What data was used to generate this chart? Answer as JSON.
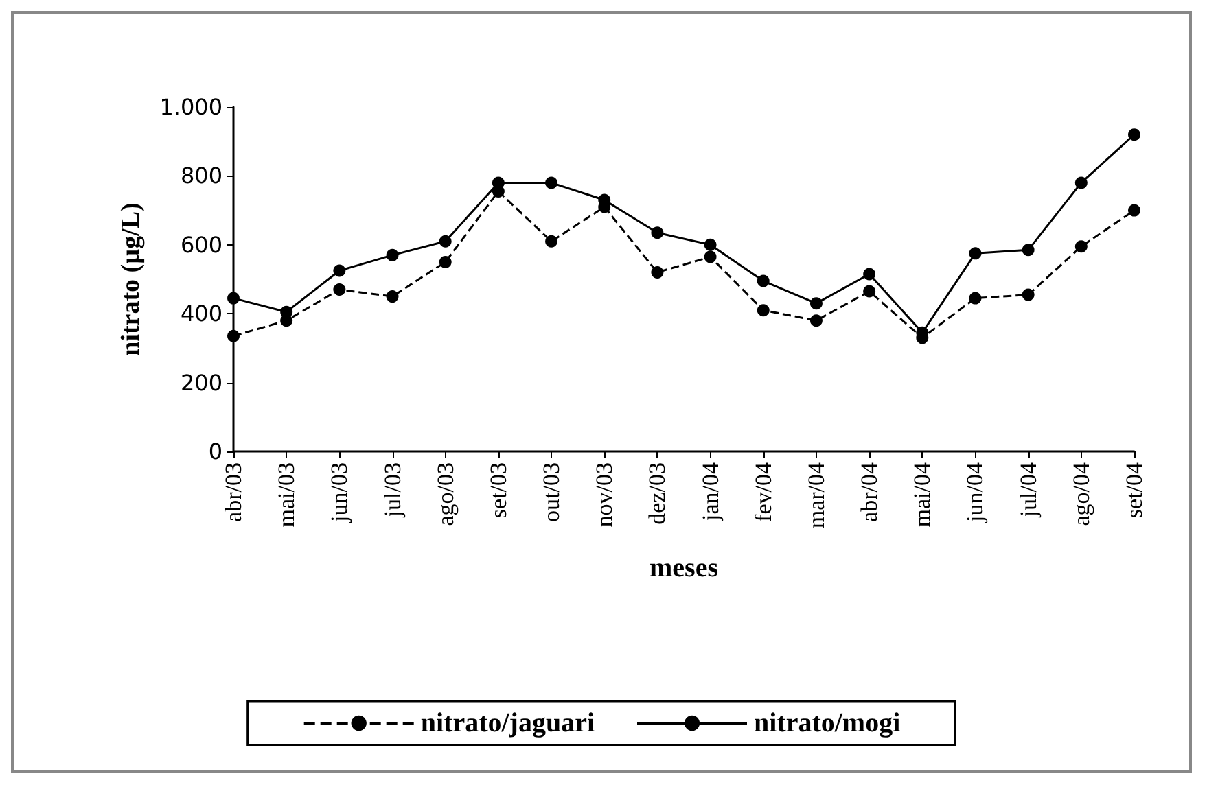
{
  "chart_data": {
    "type": "line",
    "xlabel": "meses",
    "ylabel": "nitrato (µg/L)",
    "categories": [
      "abr/03",
      "mai/03",
      "jun/03",
      "jul/03",
      "ago/03",
      "set/03",
      "out/03",
      "nov/03",
      "dez/03",
      "jan/04",
      "fev/04",
      "mar/04",
      "abr/04",
      "mai/04",
      "jun/04",
      "jul/04",
      "ago/04",
      "set/04"
    ],
    "series": [
      {
        "name": "nitrato/jaguari",
        "color": "#000000",
        "line_style": "dashed",
        "values": [
          335,
          380,
          470,
          450,
          550,
          755,
          610,
          710,
          520,
          565,
          410,
          380,
          465,
          330,
          445,
          455,
          595,
          700
        ]
      },
      {
        "name": "nitrato/mogi",
        "color": "#000000",
        "line_style": "solid",
        "values": [
          445,
          405,
          525,
          570,
          610,
          780,
          780,
          730,
          635,
          600,
          495,
          430,
          515,
          345,
          575,
          585,
          780,
          920
        ]
      }
    ],
    "ylim": [
      0,
      1000
    ],
    "yticks": [
      0,
      200,
      400,
      600,
      800,
      {
        "value": 1000,
        "label": "1.000"
      }
    ],
    "grid": false,
    "legend": "bottom",
    "marker": "circle"
  }
}
